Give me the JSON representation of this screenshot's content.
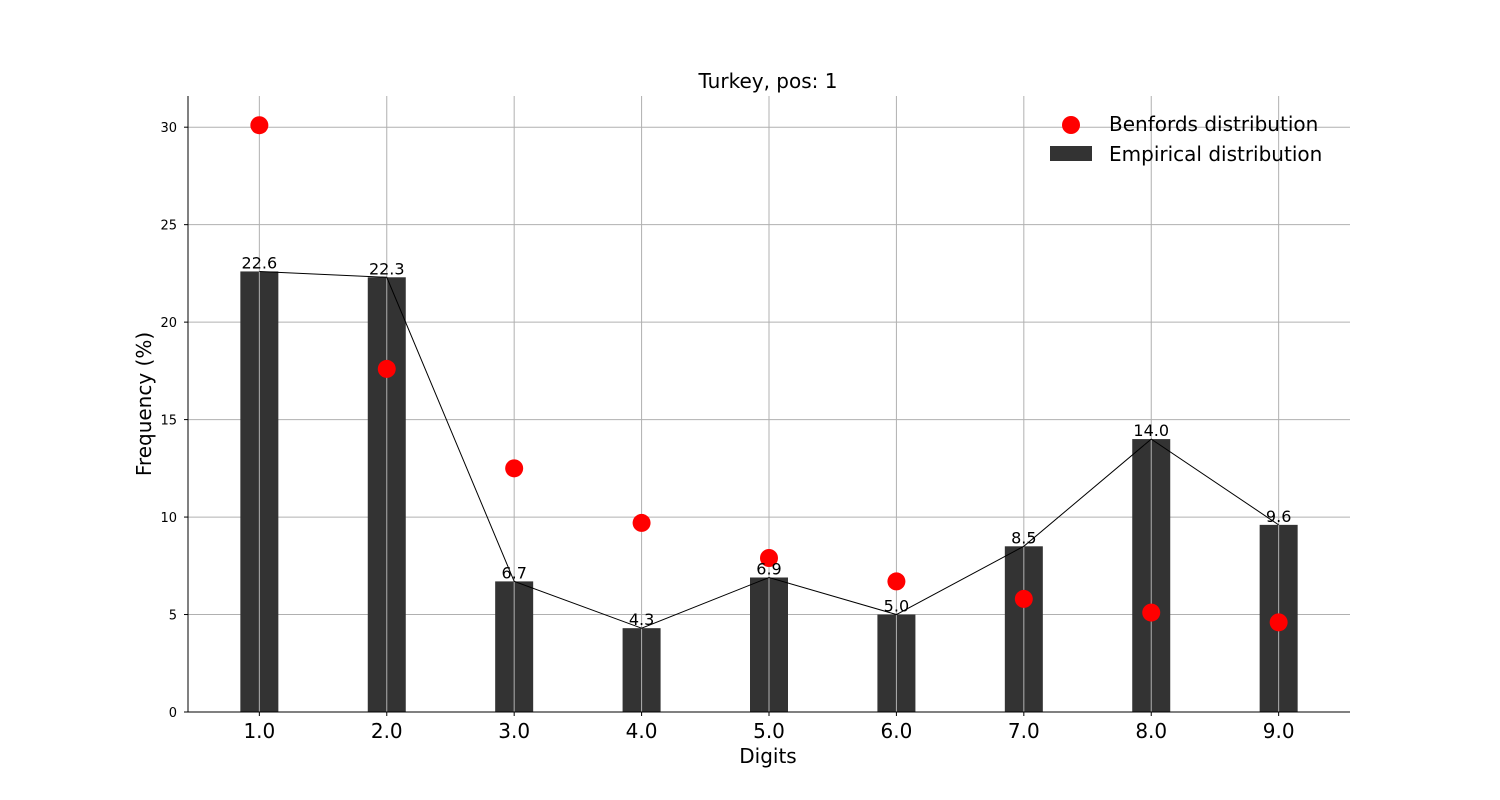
{
  "chart_data": {
    "type": "bar",
    "title": "Turkey, pos: 1",
    "xlabel": "Digits",
    "ylabel": "Frequency (%)",
    "categories": [
      "1.0",
      "2.0",
      "3.0",
      "4.0",
      "5.0",
      "6.0",
      "7.0",
      "8.0",
      "9.0"
    ],
    "x": [
      1,
      2,
      3,
      4,
      5,
      6,
      7,
      8,
      9
    ],
    "series": [
      {
        "name": "Empirical distribution",
        "kind": "bar",
        "color": "#333333",
        "values": [
          22.6,
          22.3,
          6.7,
          4.3,
          6.9,
          5.0,
          8.5,
          14.0,
          9.6
        ],
        "labels": [
          "22.6",
          "22.3",
          "6.7",
          "4.3",
          "6.9",
          "5.0",
          "8.5",
          "14.0",
          "9.6"
        ]
      },
      {
        "name": "Benfords distribution",
        "kind": "scatter",
        "color": "#ff0000",
        "values": [
          30.1,
          17.6,
          12.5,
          9.7,
          7.9,
          6.7,
          5.8,
          5.1,
          4.6
        ]
      }
    ],
    "line": {
      "color": "#000000",
      "follows": "Empirical distribution"
    },
    "ylim": [
      0,
      31.6
    ],
    "yticks": [
      0,
      5,
      10,
      15,
      20,
      25,
      30
    ],
    "ytick_labels": [
      "0",
      "5",
      "10",
      "15",
      "20",
      "25",
      "30"
    ],
    "grid": true,
    "legend_position": "top-right"
  }
}
